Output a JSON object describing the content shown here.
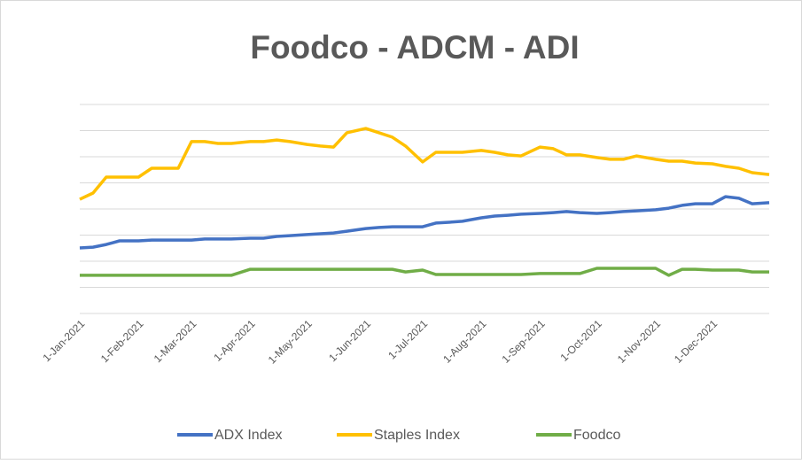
{
  "chart_data": {
    "type": "line",
    "title": "Foodco - ADCM - ADI",
    "x": [
      "1-Jan-2021",
      "8-Jan-2021",
      "15-Jan-2021",
      "22-Jan-2021",
      "1-Feb-2021",
      "8-Feb-2021",
      "15-Feb-2021",
      "22-Feb-2021",
      "1-Mar-2021",
      "8-Mar-2021",
      "15-Mar-2021",
      "22-Mar-2021",
      "1-Apr-2021",
      "8-Apr-2021",
      "15-Apr-2021",
      "22-Apr-2021",
      "1-May-2021",
      "8-May-2021",
      "15-May-2021",
      "22-May-2021",
      "1-Jun-2021",
      "8-Jun-2021",
      "15-Jun-2021",
      "22-Jun-2021",
      "1-Jul-2021",
      "8-Jul-2021",
      "15-Jul-2021",
      "22-Jul-2021",
      "1-Aug-2021",
      "8-Aug-2021",
      "15-Aug-2021",
      "22-Aug-2021",
      "1-Sep-2021",
      "8-Sep-2021",
      "15-Sep-2021",
      "22-Sep-2021",
      "1-Oct-2021",
      "8-Oct-2021",
      "15-Oct-2021",
      "22-Oct-2021",
      "1-Nov-2021",
      "8-Nov-2021",
      "15-Nov-2021",
      "22-Nov-2021",
      "1-Dec-2021",
      "8-Dec-2021",
      "15-Dec-2021",
      "22-Dec-2021",
      "31-Dec-2021"
    ],
    "xlim": [
      "1-Jan-2021",
      "31-Dec-2021"
    ],
    "xticks": [
      "1-Jan-2021",
      "1-Feb-2021",
      "1-Mar-2021",
      "1-Apr-2021",
      "1-May-2021",
      "1-Jun-2021",
      "1-Jul-2021",
      "1-Aug-2021",
      "1-Sep-2021",
      "1-Oct-2021",
      "1-Nov-2021",
      "1-Dec-2021"
    ],
    "ylim": [
      0,
      8
    ],
    "yticks": [
      0,
      1,
      2,
      3,
      4,
      5,
      6,
      7,
      8
    ],
    "grid": true,
    "legend": "bottom",
    "series": [
      {
        "name": "ADX Index",
        "color": "#4472c4",
        "values": [
          2.51,
          2.54,
          2.64,
          2.78,
          2.78,
          2.81,
          2.81,
          2.81,
          2.81,
          2.85,
          2.85,
          2.85,
          2.88,
          2.88,
          2.95,
          2.98,
          3.02,
          3.05,
          3.08,
          3.15,
          3.25,
          3.29,
          3.32,
          3.32,
          3.32,
          3.46,
          3.49,
          3.53,
          3.66,
          3.73,
          3.76,
          3.8,
          3.83,
          3.86,
          3.9,
          3.86,
          3.83,
          3.86,
          3.9,
          3.93,
          3.97,
          4.03,
          4.14,
          4.2,
          4.2,
          4.47,
          4.41,
          4.2,
          4.24
        ]
      },
      {
        "name": "Staples Index",
        "color": "#ffc000",
        "values": [
          4.37,
          4.61,
          5.22,
          5.22,
          5.22,
          5.56,
          5.56,
          5.56,
          6.58,
          6.58,
          6.51,
          6.51,
          6.58,
          6.58,
          6.64,
          6.58,
          6.47,
          6.41,
          6.37,
          6.92,
          7.08,
          6.92,
          6.75,
          6.41,
          5.8,
          6.17,
          6.17,
          6.17,
          6.24,
          6.17,
          6.07,
          6.03,
          6.37,
          6.31,
          6.07,
          6.07,
          5.97,
          5.9,
          5.9,
          6.03,
          5.9,
          5.83,
          5.83,
          5.76,
          5.73,
          5.63,
          5.56,
          5.39,
          5.32
        ]
      },
      {
        "name": "Foodco",
        "color": "#70ad47",
        "values": [
          1.46,
          1.46,
          1.46,
          1.46,
          1.46,
          1.46,
          1.46,
          1.46,
          1.46,
          1.46,
          1.46,
          1.46,
          1.69,
          1.69,
          1.69,
          1.69,
          1.69,
          1.69,
          1.69,
          1.69,
          1.69,
          1.69,
          1.69,
          1.59,
          1.66,
          1.49,
          1.49,
          1.49,
          1.49,
          1.49,
          1.49,
          1.49,
          1.53,
          1.53,
          1.53,
          1.53,
          1.73,
          1.73,
          1.73,
          1.73,
          1.73,
          1.46,
          1.69,
          1.69,
          1.66,
          1.66,
          1.66,
          1.59,
          1.59
        ]
      }
    ]
  }
}
